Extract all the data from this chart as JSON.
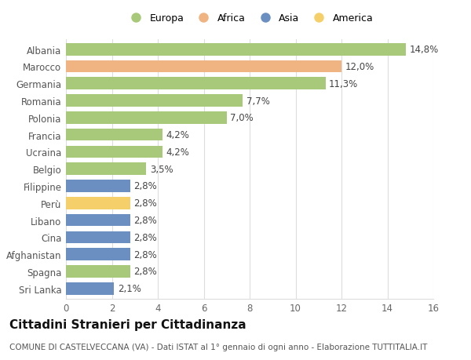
{
  "categories": [
    "Albania",
    "Marocco",
    "Germania",
    "Romania",
    "Polonia",
    "Francia",
    "Ucraina",
    "Belgio",
    "Filippine",
    "Perù",
    "Libano",
    "Cina",
    "Afghanistan",
    "Spagna",
    "Sri Lanka"
  ],
  "values": [
    14.8,
    12.0,
    11.3,
    7.7,
    7.0,
    4.2,
    4.2,
    3.5,
    2.8,
    2.8,
    2.8,
    2.8,
    2.8,
    2.8,
    2.1
  ],
  "labels": [
    "14,8%",
    "12,0%",
    "11,3%",
    "7,7%",
    "7,0%",
    "4,2%",
    "4,2%",
    "3,5%",
    "2,8%",
    "2,8%",
    "2,8%",
    "2,8%",
    "2,8%",
    "2,8%",
    "2,1%"
  ],
  "continents": [
    "Europa",
    "Africa",
    "Europa",
    "Europa",
    "Europa",
    "Europa",
    "Europa",
    "Europa",
    "Asia",
    "America",
    "Asia",
    "Asia",
    "Asia",
    "Europa",
    "Asia"
  ],
  "colors": {
    "Europa": "#a8c87a",
    "Africa": "#f0b482",
    "Asia": "#6b8fc0",
    "America": "#f5d06a"
  },
  "legend_order": [
    "Europa",
    "Africa",
    "Asia",
    "America"
  ],
  "title": "Cittadini Stranieri per Cittadinanza",
  "subtitle": "COMUNE DI CASTELVECCANA (VA) - Dati ISTAT al 1° gennaio di ogni anno - Elaborazione TUTTITALIA.IT",
  "xlim": [
    0,
    16
  ],
  "xticks": [
    0,
    2,
    4,
    6,
    8,
    10,
    12,
    14,
    16
  ],
  "background_color": "#ffffff",
  "grid_color": "#dddddd",
  "bar_height": 0.72,
  "label_fontsize": 8.5,
  "tick_fontsize": 8.5,
  "title_fontsize": 11,
  "subtitle_fontsize": 7.5
}
